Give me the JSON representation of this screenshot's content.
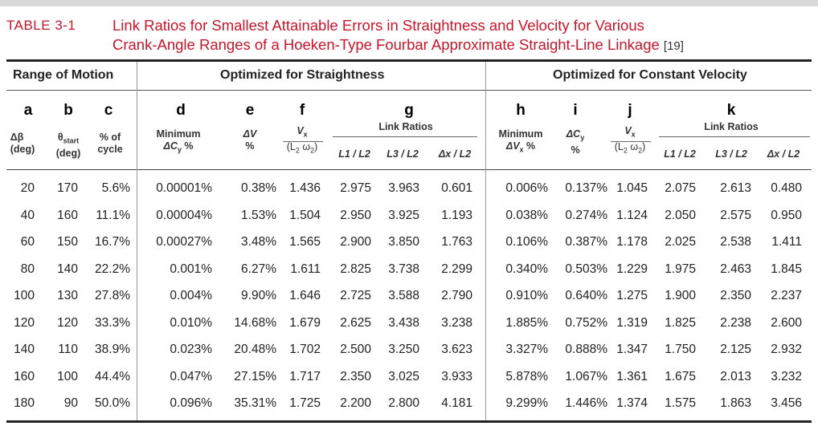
{
  "caption": {
    "label": "TABLE  3-1",
    "title_line1": "Link Ratios for Smallest Attainable Errors in Straightness and Velocity for Various",
    "title_line2": "Crank-Angle Ranges of a Hoeken-Type Fourbar Approximate Straight-Line Linkage",
    "reference": "[19]"
  },
  "groups": {
    "range": "Range of Motion",
    "straightness": "Optimized for Straightness",
    "velocity": "Optimized for Constant Velocity"
  },
  "letters": [
    "a",
    "b",
    "c",
    "d",
    "e",
    "f",
    "g",
    "h",
    "i",
    "j",
    "k"
  ],
  "subheaders": {
    "a": [
      "Δβ",
      "(deg)"
    ],
    "b": [
      "θ",
      "start",
      "(deg)"
    ],
    "c": [
      "% of",
      "cycle"
    ],
    "d": [
      "Minimum",
      "ΔC",
      "y",
      " %"
    ],
    "e": [
      "ΔV",
      "%"
    ],
    "f": [
      "V",
      "x",
      "(L",
      "2",
      " ω",
      "2",
      ")"
    ],
    "g_title": "Link Ratios",
    "lr": [
      "L1 / L2",
      "L3 / L2",
      "Δx / L2"
    ],
    "h": [
      "Minimum",
      "ΔV",
      "x",
      " %"
    ],
    "i": [
      "ΔC",
      "y",
      "%"
    ],
    "j": [
      "V",
      "x",
      "(L",
      "2",
      " ω",
      "2",
      ")"
    ],
    "k_title": "Link Ratios"
  },
  "rows": [
    [
      "20",
      "170",
      "5.6%",
      "0.00001%",
      "0.38%",
      "1.436",
      "2.975",
      "3.963",
      "0.601",
      "0.006%",
      "0.137%",
      "1.045",
      "2.075",
      "2.613",
      "0.480"
    ],
    [
      "40",
      "160",
      "11.1%",
      "0.00004%",
      "1.53%",
      "1.504",
      "2.950",
      "3.925",
      "1.193",
      "0.038%",
      "0.274%",
      "1.124",
      "2.050",
      "2.575",
      "0.950"
    ],
    [
      "60",
      "150",
      "16.7%",
      "0.00027%",
      "3.48%",
      "1.565",
      "2.900",
      "3.850",
      "1.763",
      "0.106%",
      "0.387%",
      "1.178",
      "2.025",
      "2.538",
      "1.411"
    ],
    [
      "80",
      "140",
      "22.2%",
      "0.001%",
      "6.27%",
      "1.611",
      "2.825",
      "3.738",
      "2.299",
      "0.340%",
      "0.503%",
      "1.229",
      "1.975",
      "2.463",
      "1.845"
    ],
    [
      "100",
      "130",
      "27.8%",
      "0.004%",
      "9.90%",
      "1.646",
      "2.725",
      "3.588",
      "2.790",
      "0.910%",
      "0.640%",
      "1.275",
      "1.900",
      "2.350",
      "2.237"
    ],
    [
      "120",
      "120",
      "33.3%",
      "0.010%",
      "14.68%",
      "1.679",
      "2.625",
      "3.438",
      "3.238",
      "1.885%",
      "0.752%",
      "1.319",
      "1.825",
      "2.238",
      "2.600"
    ],
    [
      "140",
      "110",
      "38.9%",
      "0.023%",
      "20.48%",
      "1.702",
      "2.500",
      "3.250",
      "3.623",
      "3.327%",
      "0.888%",
      "1.347",
      "1.750",
      "2.125",
      "2.932"
    ],
    [
      "160",
      "100",
      "44.4%",
      "0.047%",
      "27.15%",
      "1.717",
      "2.350",
      "3.025",
      "3.933",
      "5.878%",
      "1.067%",
      "1.361",
      "1.675",
      "2.013",
      "3.232"
    ],
    [
      "180",
      "90",
      "50.0%",
      "0.096%",
      "35.31%",
      "1.725",
      "2.200",
      "2.800",
      "4.181",
      "9.299%",
      "1.446%",
      "1.374",
      "1.575",
      "1.863",
      "3.456"
    ]
  ]
}
